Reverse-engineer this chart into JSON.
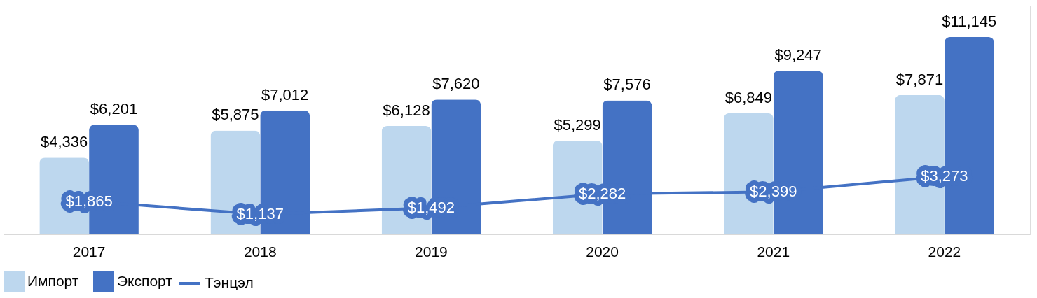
{
  "chart_data": {
    "type": "bar",
    "categories": [
      "2017",
      "2018",
      "2019",
      "2020",
      "2021",
      "2022"
    ],
    "series": [
      {
        "name": "Импорт",
        "color": "#bdd7ee",
        "values": [
          4336,
          5875,
          6128,
          5299,
          6849,
          7871
        ],
        "value_labels": [
          "$4,336",
          "$5,875",
          "$6,128",
          "$5,299",
          "$6,849",
          "$7,871"
        ]
      },
      {
        "name": "Экспорт",
        "color": "#4472c4",
        "values": [
          6201,
          7012,
          7620,
          7576,
          9247,
          11145
        ],
        "value_labels": [
          "$6,201",
          "$7,012",
          "$7,620",
          "$7,576",
          "$9,247",
          "$11,145"
        ]
      },
      {
        "name": "Тэнцэл",
        "type": "line",
        "color": "#4472c4",
        "values": [
          1865,
          1137,
          1492,
          2282,
          2399,
          3273
        ],
        "value_labels": [
          "$1,865",
          "$1,137",
          "$1,492",
          "$2,282",
          "$2,399",
          "$3,273"
        ]
      }
    ],
    "legend": "bottom",
    "grid": false
  }
}
